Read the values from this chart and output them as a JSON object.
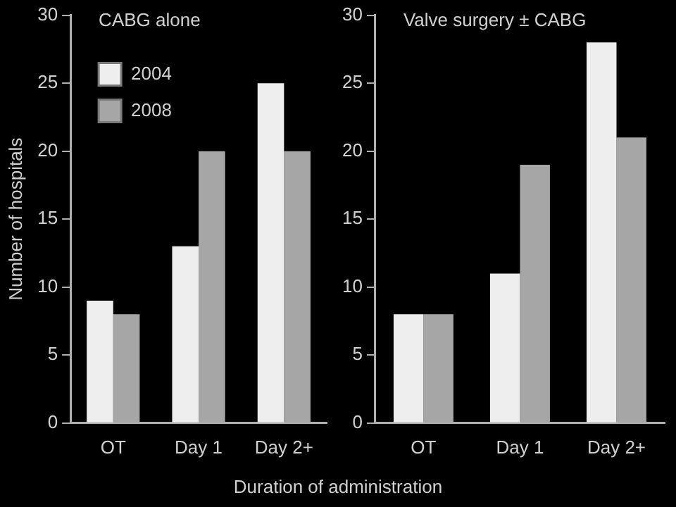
{
  "chart_data": [
    {
      "type": "bar",
      "title": "CABG alone",
      "ylabel": "Number of hospitals",
      "xlabel": "Duration of administration",
      "categories": [
        "OT",
        "Day 1",
        "Day 2+"
      ],
      "series": [
        {
          "name": "2004",
          "color": "#eeeeee",
          "values": [
            9,
            13,
            25
          ]
        },
        {
          "name": "2008",
          "color": "#a6a6a6",
          "values": [
            8,
            20,
            20
          ]
        }
      ],
      "ylim": [
        0,
        30
      ],
      "yticks": [
        0,
        5,
        10,
        15,
        20,
        25,
        30
      ],
      "grid": false,
      "legend": "top left"
    },
    {
      "type": "bar",
      "title": "Valve surgery ± CABG",
      "categories": [
        "OT",
        "Day 1",
        "Day 2+"
      ],
      "series": [
        {
          "color": "#eeeeee",
          "values": [
            8,
            11,
            28
          ]
        },
        {
          "color": "#a6a6a6",
          "values": [
            8,
            19,
            21
          ]
        }
      ],
      "ylim": [
        0,
        30
      ],
      "yticks": [
        0,
        5,
        10,
        15,
        20,
        25,
        30
      ],
      "grid": false,
      "legend": false
    }
  ]
}
